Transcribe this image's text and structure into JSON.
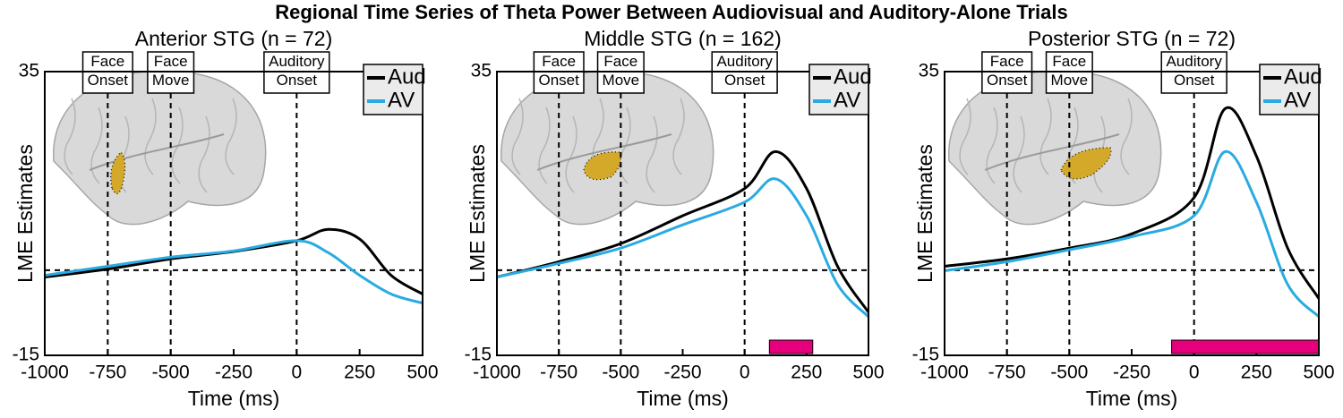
{
  "title": "Regional Time Series of Theta Power Between Audiovisual and Auditory-Alone Trials",
  "chart_data": [
    {
      "type": "line",
      "title": "Anterior STG (n = 72)",
      "xlabel": "Time (ms)",
      "ylabel": "LME Estimates",
      "xlim": [
        -1000,
        500
      ],
      "xticks": [
        -1000,
        -750,
        -500,
        -250,
        0,
        250,
        500
      ],
      "ylim": [
        -15,
        35
      ],
      "yticks": [
        -15,
        35
      ],
      "legend": "upper right",
      "hline": 0,
      "annotations": [
        {
          "x": -750,
          "label": "Face Onset"
        },
        {
          "x": -500,
          "label": "Face Move"
        },
        {
          "x": 0,
          "label": "Auditory Onset"
        }
      ],
      "x": [
        -1000,
        -750,
        -500,
        -250,
        0,
        125,
        250,
        375,
        500
      ],
      "series": [
        {
          "name": "Aud",
          "color": "#000000",
          "values": [
            -1.2,
            0.2,
            2,
            3.3,
            5.2,
            7.2,
            5.5,
            -0.9,
            -4.2
          ]
        },
        {
          "name": "AV",
          "color": "#29abe2",
          "values": [
            -0.9,
            0.7,
            2.3,
            3.4,
            5.2,
            3.1,
            -0.9,
            -4.2,
            -5.8
          ]
        }
      ]
    },
    {
      "type": "line",
      "title": "Middle STG (n = 162)",
      "xlabel": "Time (ms)",
      "ylabel": "LME Estimates",
      "xlim": [
        -1000,
        500
      ],
      "xticks": [
        -1000,
        -750,
        -500,
        -250,
        0,
        250,
        500
      ],
      "ylim": [
        -15,
        35
      ],
      "yticks": [
        -15,
        35
      ],
      "legend": "upper right",
      "hline": 0,
      "annotations": [
        {
          "x": -750,
          "label": "Face Onset"
        },
        {
          "x": -500,
          "label": "Face Move"
        },
        {
          "x": 0,
          "label": "Auditory Onset"
        }
      ],
      "significance": {
        "x": [
          100,
          275
        ],
        "color": "#e6007e"
      },
      "x": [
        -1000,
        -750,
        -500,
        -250,
        0,
        125,
        250,
        375,
        500
      ],
      "series": [
        {
          "name": "Aud",
          "color": "#000000",
          "values": [
            -1.2,
            1.5,
            4.7,
            9.6,
            14.4,
            20.9,
            14.4,
            0.7,
            -7.4
          ]
        },
        {
          "name": "AV",
          "color": "#29abe2",
          "values": [
            -1.2,
            1.2,
            3.9,
            8,
            12,
            16.1,
            9.6,
            -2.5,
            -8.2
          ]
        }
      ]
    },
    {
      "type": "line",
      "title": "Posterior STG (n = 72)",
      "xlabel": "Time (ms)",
      "ylabel": "LME Estimates",
      "xlim": [
        -1000,
        500
      ],
      "xticks": [
        -1000,
        -750,
        -500,
        -250,
        0,
        250,
        500
      ],
      "ylim": [
        -15,
        35
      ],
      "yticks": [
        -15,
        35
      ],
      "legend": "upper right",
      "hline": 0,
      "annotations": [
        {
          "x": -750,
          "label": "Face Onset"
        },
        {
          "x": -500,
          "label": "Face Move"
        },
        {
          "x": 0,
          "label": "Auditory Onset"
        }
      ],
      "significance": {
        "x": [
          -90,
          500
        ],
        "color": "#e6007e"
      },
      "x": [
        -1000,
        -750,
        -500,
        -250,
        0,
        125,
        250,
        375,
        500
      ],
      "series": [
        {
          "name": "Aud",
          "color": "#000000",
          "values": [
            0.7,
            2,
            3.9,
            6.4,
            12.8,
            28.5,
            20.1,
            3.9,
            -5
          ]
        },
        {
          "name": "AV",
          "color": "#29abe2",
          "values": [
            -0.1,
            1.5,
            3.6,
            5.9,
            9.6,
            20.9,
            12,
            -2.5,
            -8.2
          ]
        }
      ]
    }
  ]
}
